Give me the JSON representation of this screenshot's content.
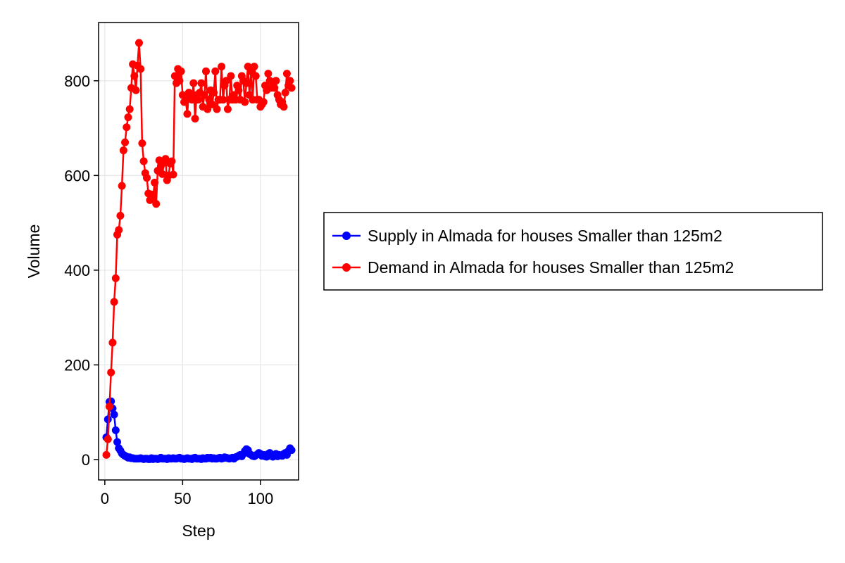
{
  "chart_data": {
    "type": "line",
    "xlabel": "Step",
    "ylabel": "Volume",
    "xlim": [
      -4,
      124.5
    ],
    "ylim": [
      -43,
      923
    ],
    "xticks": [
      0,
      50,
      100
    ],
    "yticks": [
      0,
      200,
      400,
      600,
      800
    ],
    "grid": true,
    "legend_position": "right",
    "series": [
      {
        "name": "Supply in Almada for houses Smaller than 125m2",
        "color": "#0000ff",
        "x": [
          1,
          2,
          3,
          4,
          5,
          6,
          7,
          8,
          9,
          10,
          11,
          12,
          13,
          14,
          15,
          16,
          17,
          18,
          19,
          20,
          21,
          22,
          23,
          24,
          25,
          26,
          27,
          28,
          29,
          30,
          31,
          32,
          33,
          34,
          35,
          36,
          37,
          38,
          39,
          40,
          41,
          42,
          43,
          44,
          45,
          46,
          47,
          48,
          49,
          50,
          51,
          52,
          53,
          54,
          55,
          56,
          57,
          58,
          59,
          60,
          61,
          62,
          63,
          64,
          65,
          66,
          67,
          68,
          69,
          70,
          71,
          72,
          73,
          74,
          75,
          76,
          77,
          78,
          79,
          80,
          81,
          82,
          83,
          84,
          85,
          86,
          87,
          88,
          89,
          90,
          91,
          92,
          93,
          94,
          95,
          96,
          97,
          98,
          99,
          100,
          101,
          102,
          103,
          104,
          105,
          106,
          107,
          108,
          109,
          110,
          111,
          112,
          113,
          114,
          115,
          116,
          117,
          118,
          119,
          120
        ],
        "values": [
          47,
          85,
          122,
          123,
          108,
          95,
          62,
          37,
          24,
          19,
          13,
          10,
          8,
          6,
          4,
          5,
          3,
          3,
          2,
          2,
          2,
          2,
          3,
          2,
          1,
          2,
          2,
          1,
          1,
          3,
          1,
          2,
          2,
          1,
          2,
          4,
          2,
          2,
          2,
          1,
          3,
          2,
          2,
          3,
          2,
          2,
          3,
          4,
          2,
          2,
          1,
          2,
          3,
          2,
          2,
          1,
          3,
          4,
          2,
          2,
          2,
          1,
          3,
          2,
          2,
          4,
          3,
          4,
          2,
          3,
          2,
          2,
          3,
          4,
          2,
          3,
          5,
          4,
          3,
          2,
          3,
          4,
          2,
          5,
          6,
          8,
          10,
          7,
          12,
          18,
          22,
          20,
          12,
          10,
          8,
          7,
          9,
          11,
          14,
          12,
          8,
          10,
          7,
          6,
          12,
          14,
          8,
          6,
          9,
          12,
          7,
          10,
          9,
          8,
          12,
          14,
          10,
          18,
          24,
          20
        ]
      },
      {
        "name": "Demand in Almada for houses Smaller than 125m2",
        "color": "#ff0000",
        "x": [
          1,
          2,
          3,
          4,
          5,
          6,
          7,
          8,
          9,
          10,
          11,
          12,
          13,
          14,
          15,
          16,
          17,
          18,
          19,
          20,
          21,
          22,
          23,
          24,
          25,
          26,
          27,
          28,
          29,
          30,
          31,
          32,
          33,
          34,
          35,
          36,
          37,
          38,
          39,
          40,
          41,
          42,
          43,
          44,
          45,
          46,
          47,
          48,
          49,
          50,
          51,
          52,
          53,
          54,
          55,
          56,
          57,
          58,
          59,
          60,
          61,
          62,
          63,
          64,
          65,
          66,
          67,
          68,
          69,
          70,
          71,
          72,
          73,
          74,
          75,
          76,
          77,
          78,
          79,
          80,
          81,
          82,
          83,
          84,
          85,
          86,
          87,
          88,
          89,
          90,
          91,
          92,
          93,
          94,
          95,
          96,
          97,
          98,
          99,
          100,
          101,
          102,
          103,
          104,
          105,
          106,
          107,
          108,
          109,
          110,
          111,
          112,
          113,
          114,
          115,
          116,
          117,
          118,
          119,
          120
        ],
        "values": [
          10,
          43,
          112,
          184,
          247,
          333,
          383,
          475,
          485,
          515,
          578,
          653,
          670,
          702,
          723,
          740,
          785,
          835,
          810,
          780,
          832,
          880,
          825,
          668,
          630,
          605,
          595,
          562,
          548,
          560,
          553,
          585,
          540,
          610,
          632,
          620,
          603,
          627,
          635,
          590,
          600,
          625,
          630,
          602,
          810,
          795,
          825,
          800,
          820,
          770,
          755,
          760,
          730,
          775,
          770,
          760,
          795,
          720,
          770,
          760,
          775,
          795,
          745,
          770,
          820,
          740,
          760,
          780,
          750,
          775,
          820,
          740,
          760,
          760,
          830,
          760,
          790,
          800,
          740,
          760,
          810,
          760,
          770,
          760,
          790,
          780,
          760,
          810,
          800,
          755,
          795,
          830,
          770,
          820,
          760,
          830,
          810,
          760,
          760,
          745,
          750,
          755,
          790,
          780,
          815,
          800,
          785,
          790,
          785,
          800,
          770,
          760,
          750,
          755,
          745,
          775,
          815,
          790,
          800,
          785
        ]
      }
    ]
  }
}
